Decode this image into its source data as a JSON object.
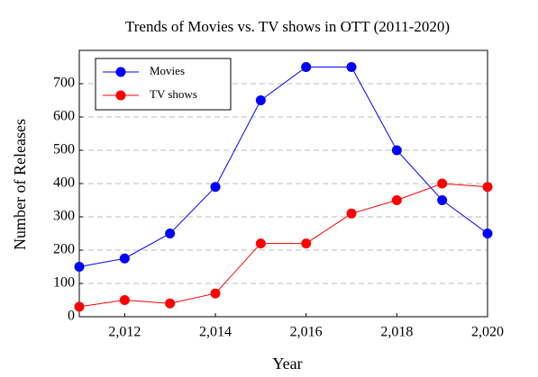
{
  "chart_data": {
    "type": "line",
    "title": "Trends of Movies vs. TV shows in OTT (2011-2020)",
    "xlabel": "Year",
    "ylabel": "Number of Releases",
    "x": [
      2011,
      2012,
      2013,
      2014,
      2015,
      2016,
      2017,
      2018,
      2019,
      2020
    ],
    "series": [
      {
        "name": "Movies",
        "color": "#0000ff",
        "values": [
          150,
          175,
          250,
          390,
          650,
          750,
          750,
          500,
          350,
          250
        ]
      },
      {
        "name": "TV shows",
        "color": "#ff0000",
        "values": [
          30,
          50,
          40,
          70,
          220,
          220,
          310,
          350,
          400,
          390
        ]
      }
    ],
    "xlim": [
      2011,
      2020
    ],
    "xticks": [
      {
        "value": 2012,
        "label": "2,012"
      },
      {
        "value": 2014,
        "label": "2,014"
      },
      {
        "value": 2016,
        "label": "2,016"
      },
      {
        "value": 2018,
        "label": "2,018"
      },
      {
        "value": 2020,
        "label": "2,020"
      }
    ],
    "ylim": [
      0,
      800
    ],
    "yticks": [
      0,
      100,
      200,
      300,
      400,
      500,
      600,
      700
    ],
    "grid": true,
    "legend": "upper left"
  }
}
